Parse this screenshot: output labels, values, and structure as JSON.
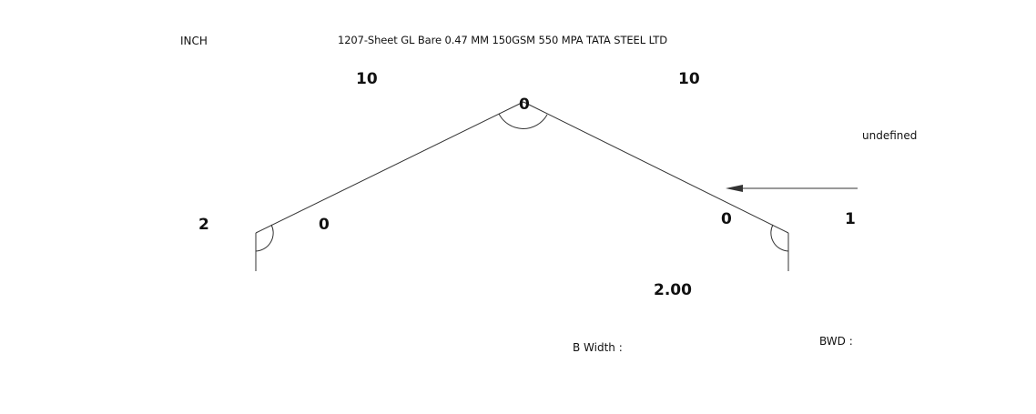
{
  "unit": "INCH",
  "title": "1207-Sheet GL Bare 0.47 MM 150GSM 550 MPA TATA STEEL LTD",
  "dimensions": {
    "left_slope_length": "10",
    "right_slope_length": "10",
    "left_leg_length": "2",
    "right_leg_length": "1",
    "apex_angle": "0",
    "left_bend_angle": "0",
    "right_bend_angle": "0",
    "bottom_value": "2.00"
  },
  "arrow_note": "undefined",
  "labels": {
    "b_width": "B Width :",
    "bwd": "BWD :"
  },
  "colors": {
    "line": "#333333",
    "text": "#111111"
  }
}
